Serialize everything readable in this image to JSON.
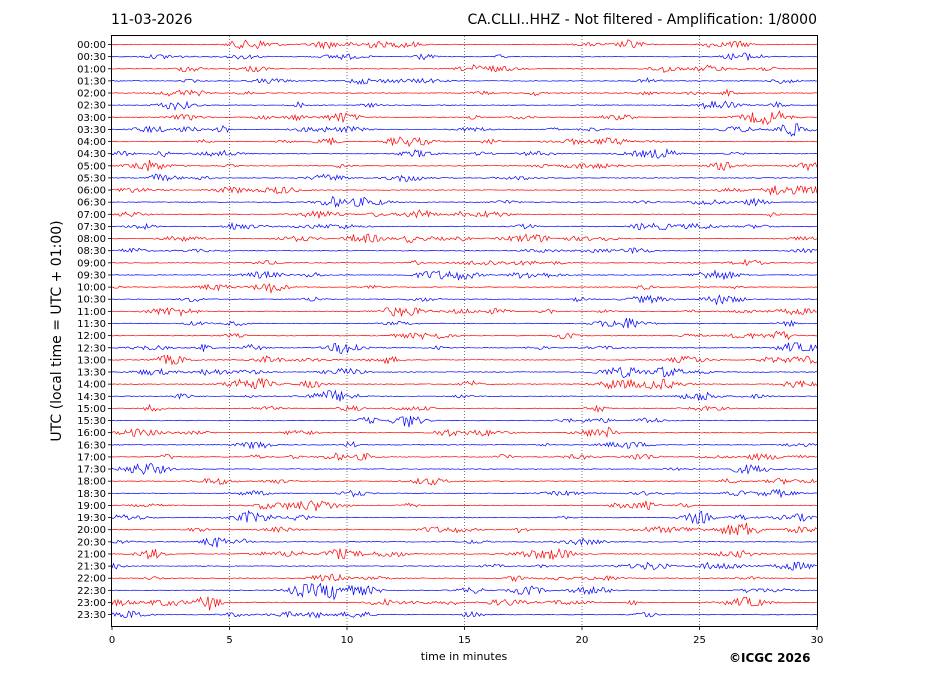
{
  "header": {
    "date": "11-03-2026",
    "title": "CA.CLLI..HHZ - Not filtered - Amplification: 1/8000"
  },
  "footer": {
    "copyright": "©ICGC 2026"
  },
  "colors": {
    "odd_row": "#ff0000",
    "even_row": "#0000ff",
    "grid": "#555555",
    "axes": "#000000"
  },
  "chart_data": {
    "type": "line",
    "description_type": "helicorder",
    "xlabel": "time in minutes",
    "ylabel": "UTC (local time = UTC + 01:00)",
    "xlim": [
      0,
      30
    ],
    "x_ticks": [
      0,
      5,
      10,
      15,
      20,
      25,
      30
    ],
    "grid": "vertical dotted lines at each x tick",
    "rows": [
      "00:00",
      "00:30",
      "01:00",
      "01:30",
      "02:00",
      "02:30",
      "03:00",
      "03:30",
      "04:00",
      "04:30",
      "05:00",
      "05:30",
      "06:00",
      "06:30",
      "07:00",
      "07:30",
      "08:00",
      "08:30",
      "09:00",
      "09:30",
      "10:00",
      "10:30",
      "11:00",
      "11:30",
      "12:00",
      "12:30",
      "13:00",
      "13:30",
      "14:00",
      "14:30",
      "15:00",
      "15:30",
      "16:00",
      "16:30",
      "17:00",
      "17:30",
      "18:00",
      "18:30",
      "19:00",
      "19:30",
      "20:00",
      "20:30",
      "21:00",
      "21:30",
      "22:00",
      "22:30",
      "23:00",
      "23:30"
    ],
    "row_colors": "alternating red/blue starting with red at 00:00"
  }
}
